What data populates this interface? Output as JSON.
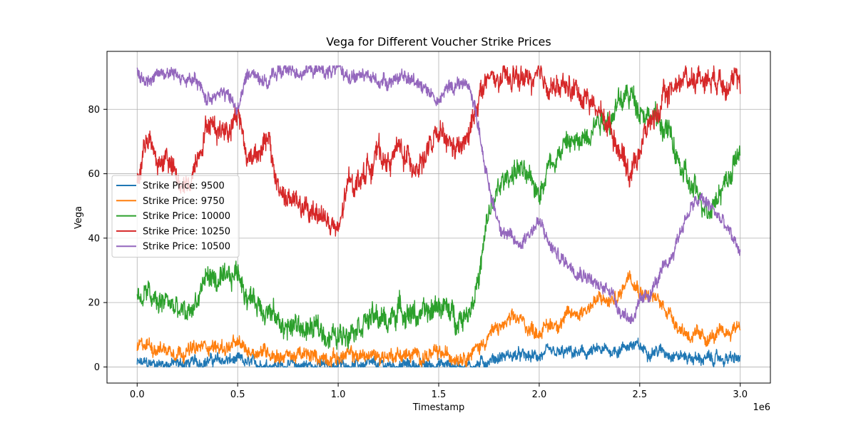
{
  "chart_data": {
    "type": "line",
    "title": "Vega for Different Voucher Strike Prices",
    "xlabel": "Timestamp",
    "ylabel": "Vega",
    "x_offset_text": "1e6",
    "xlim": [
      -150000,
      3150000
    ],
    "ylim": [
      -5,
      98
    ],
    "xticks": [
      0,
      500000,
      1000000,
      1500000,
      2000000,
      2500000,
      3000000
    ],
    "xtick_labels": [
      "0.0",
      "0.5",
      "1.0",
      "1.5",
      "2.0",
      "2.5",
      "3.0"
    ],
    "yticks": [
      0,
      20,
      40,
      60,
      80
    ],
    "ytick_labels": [
      "0",
      "20",
      "40",
      "60",
      "80"
    ],
    "grid": true,
    "legend_position": "center-left",
    "x": [
      0,
      50000,
      100000,
      150000,
      200000,
      250000,
      300000,
      350000,
      400000,
      450000,
      500000,
      550000,
      600000,
      650000,
      700000,
      750000,
      800000,
      850000,
      900000,
      950000,
      1000000,
      1050000,
      1100000,
      1150000,
      1200000,
      1250000,
      1300000,
      1350000,
      1400000,
      1450000,
      1500000,
      1550000,
      1600000,
      1650000,
      1700000,
      1750000,
      1800000,
      1850000,
      1900000,
      1950000,
      2000000,
      2050000,
      2100000,
      2150000,
      2200000,
      2250000,
      2300000,
      2350000,
      2400000,
      2450000,
      2500000,
      2550000,
      2600000,
      2650000,
      2700000,
      2750000,
      2800000,
      2850000,
      2900000,
      2950000,
      3000000
    ],
    "series": [
      {
        "name": "Strike Price: 9500",
        "color": "#1f77b4",
        "noise": 2.5,
        "values": [
          1,
          1,
          1,
          1,
          1,
          1,
          1.5,
          2,
          2,
          2,
          2,
          1,
          1,
          1,
          0.5,
          0.5,
          0.5,
          0.5,
          0.5,
          0.5,
          0.5,
          0.5,
          0.5,
          0.5,
          0.5,
          0.5,
          0.5,
          0.5,
          0.5,
          0.5,
          0.8,
          0.5,
          0.5,
          0.5,
          0.8,
          2,
          3,
          3.5,
          3.5,
          3,
          3.5,
          4,
          4,
          4.5,
          4,
          4.5,
          5,
          5,
          5.5,
          7,
          6,
          5,
          5,
          4.5,
          3.5,
          3,
          2.5,
          2.5,
          2.5,
          2.5,
          2.5
        ]
      },
      {
        "name": "Strike Price: 9750",
        "color": "#ff7f0e",
        "noise": 3,
        "values": [
          6,
          7,
          6,
          5.5,
          5,
          5,
          5.5,
          7,
          6,
          6,
          7,
          5,
          5,
          5,
          3.5,
          3.5,
          3.5,
          3.5,
          3,
          3,
          3,
          3.5,
          3.5,
          3.5,
          3.5,
          3.5,
          4,
          3.5,
          3.5,
          3.5,
          4,
          3.5,
          3.5,
          4,
          6,
          10,
          12,
          14,
          15,
          12,
          11,
          13,
          14,
          16,
          17,
          19,
          21,
          20,
          22,
          30,
          24,
          22,
          20,
          17,
          12,
          10,
          9,
          9,
          10,
          11,
          14
        ]
      },
      {
        "name": "Strike Price: 10000",
        "color": "#2ca02c",
        "noise": 5,
        "values": [
          20,
          23,
          19,
          21,
          17,
          16,
          21,
          29,
          26,
          26,
          30,
          22,
          20,
          18,
          14,
          12,
          13,
          11,
          12,
          10,
          9,
          12,
          14,
          15,
          15,
          14,
          18,
          17,
          16,
          16,
          20,
          17,
          15,
          18,
          27,
          48,
          55,
          60,
          62,
          57,
          55,
          63,
          67,
          70,
          69,
          74,
          78,
          77,
          82,
          85,
          81,
          78,
          76,
          72,
          62,
          56,
          52,
          50,
          55,
          60,
          67
        ]
      },
      {
        "name": "Strike Price: 10250",
        "color": "#d62728",
        "noise": 5,
        "values": [
          56,
          73,
          62,
          66,
          57,
          55,
          66,
          76,
          74,
          74,
          80,
          64,
          68,
          70,
          56,
          52,
          51,
          47,
          49,
          45,
          41,
          57,
          58,
          62,
          67,
          63,
          68,
          64,
          63,
          67,
          72,
          69,
          67,
          71,
          85,
          89,
          89,
          89,
          90,
          89,
          89,
          88,
          86,
          87,
          85,
          83,
          79,
          75,
          68,
          60,
          68,
          76,
          80,
          86,
          89,
          90,
          90,
          90,
          90,
          89,
          87
        ]
      },
      {
        "name": "Strike Price: 10500",
        "color": "#9467bd",
        "noise": 3,
        "values": [
          92,
          88,
          92,
          91,
          91,
          89,
          88,
          83,
          86,
          84,
          80,
          91,
          91,
          88,
          92,
          92,
          92,
          92,
          92,
          92,
          92,
          91,
          90,
          90,
          89,
          89,
          90,
          89,
          89,
          86,
          82,
          87,
          88,
          88,
          75,
          55,
          45,
          40,
          38,
          42,
          45,
          38,
          34,
          32,
          30,
          28,
          24,
          25,
          18,
          15,
          19,
          23,
          28,
          33,
          42,
          49,
          52,
          50,
          46,
          41,
          36
        ]
      }
    ]
  }
}
